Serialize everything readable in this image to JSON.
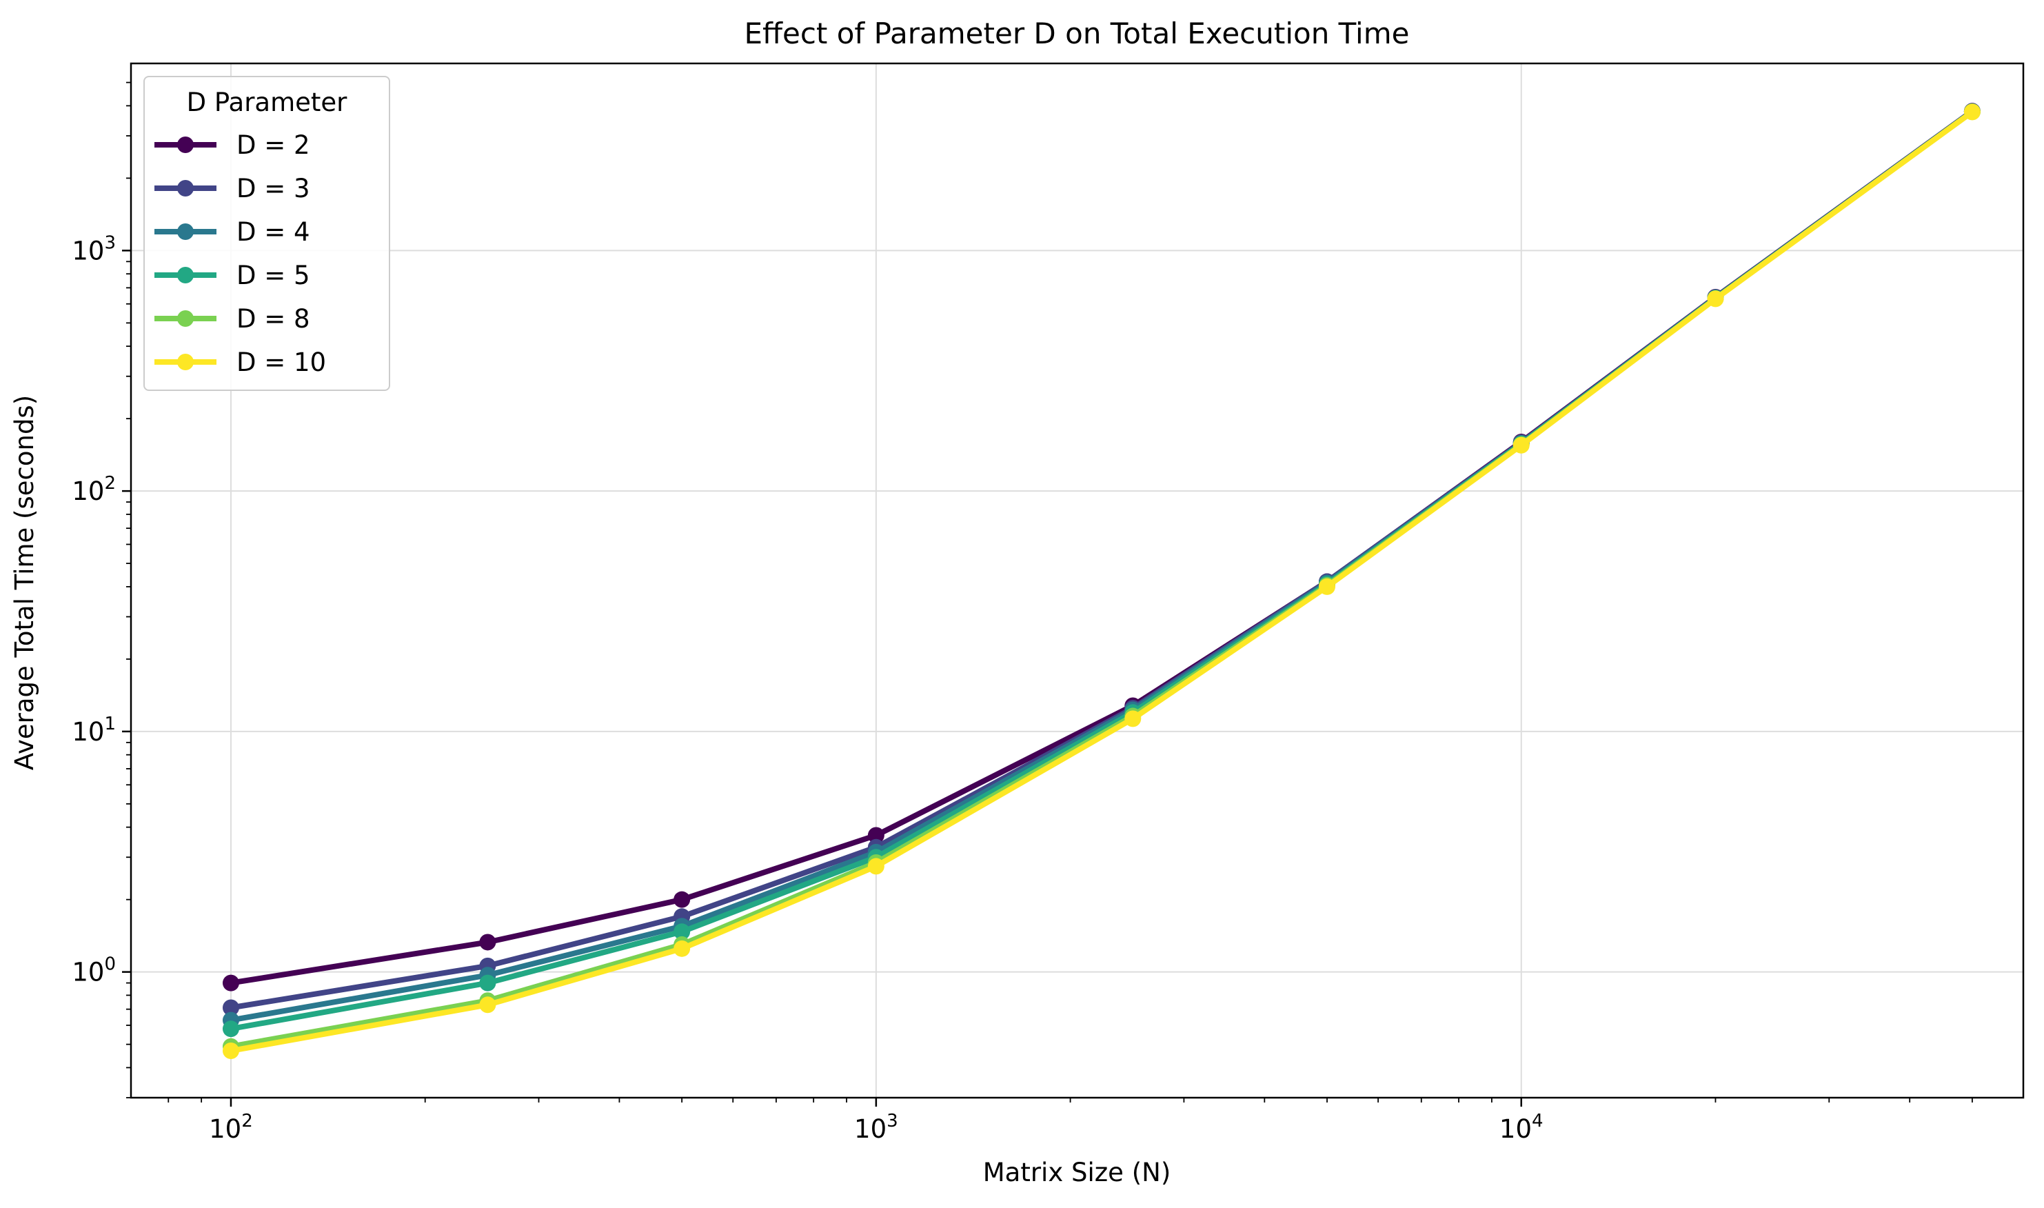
{
  "chart_data": {
    "type": "line",
    "title": "Effect of Parameter D on Total Execution Time",
    "xlabel": "Matrix Size (N)",
    "ylabel": "Average Total Time (seconds)",
    "xscale": "log",
    "yscale": "log",
    "xlim": [
      70,
      60000
    ],
    "ylim": [
      0.3,
      6000
    ],
    "x_ticks": [
      {
        "value": 100,
        "base": "10",
        "exp": "2"
      },
      {
        "value": 1000,
        "base": "10",
        "exp": "3"
      },
      {
        "value": 10000,
        "base": "10",
        "exp": "4"
      }
    ],
    "y_ticks": [
      {
        "value": 1,
        "base": "10",
        "exp": "0"
      },
      {
        "value": 10,
        "base": "10",
        "exp": "1"
      },
      {
        "value": 100,
        "base": "10",
        "exp": "2"
      },
      {
        "value": 1000,
        "base": "10",
        "exp": "3"
      }
    ],
    "grid": true,
    "legend": {
      "title": "D Parameter",
      "placement": "top-left"
    },
    "x": [
      100,
      250,
      500,
      1000,
      2500,
      5000,
      10000,
      20000,
      50000
    ],
    "series": [
      {
        "name": "D = 2",
        "color": "#440154",
        "values": [
          0.9,
          1.33,
          2.0,
          3.7,
          12.8,
          42,
          160,
          640,
          3800
        ]
      },
      {
        "name": "D = 3",
        "color": "#414487",
        "values": [
          0.71,
          1.06,
          1.7,
          3.3,
          12.5,
          42,
          159,
          638,
          3790
        ]
      },
      {
        "name": "D = 4",
        "color": "#2a788e",
        "values": [
          0.63,
          0.97,
          1.55,
          3.15,
          12.3,
          41.5,
          158,
          636,
          3785
        ]
      },
      {
        "name": "D = 5",
        "color": "#22a884",
        "values": [
          0.58,
          0.9,
          1.47,
          3.0,
          12.0,
          41,
          157,
          634,
          3780
        ]
      },
      {
        "name": "D = 8",
        "color": "#7ad151",
        "values": [
          0.49,
          0.76,
          1.3,
          2.85,
          11.6,
          40.5,
          156,
          632,
          3775
        ]
      },
      {
        "name": "D = 10",
        "color": "#fde725",
        "values": [
          0.47,
          0.73,
          1.25,
          2.75,
          11.3,
          40,
          155,
          630,
          3770
        ]
      }
    ]
  }
}
